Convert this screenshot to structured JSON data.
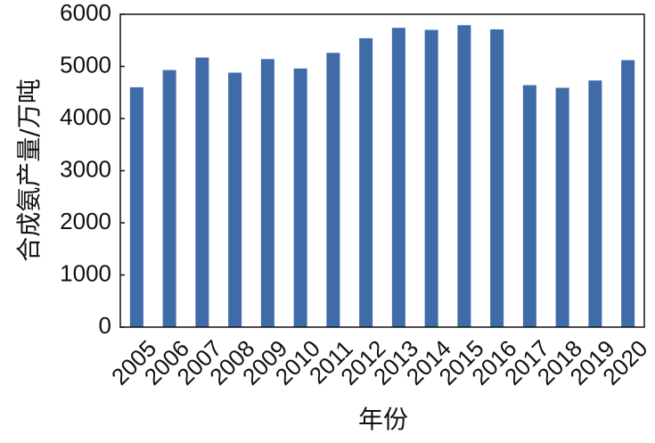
{
  "chart_data": {
    "type": "bar",
    "xlabel": "年份",
    "ylabel": "合成氨产量/万吨",
    "categories": [
      "2005",
      "2006",
      "2007",
      "2008",
      "2009",
      "2010",
      "2011",
      "2012",
      "2013",
      "2014",
      "2015",
      "2016",
      "2017",
      "2018",
      "2019",
      "2020"
    ],
    "values": [
      4600,
      4930,
      5170,
      4880,
      5140,
      4960,
      5260,
      5540,
      5740,
      5700,
      5790,
      5710,
      4640,
      4590,
      4730,
      5120
    ],
    "color": "#3f6ca8",
    "ylim": [
      0,
      6000
    ],
    "yticks": [
      0,
      1000,
      2000,
      3000,
      4000,
      5000,
      6000
    ]
  }
}
